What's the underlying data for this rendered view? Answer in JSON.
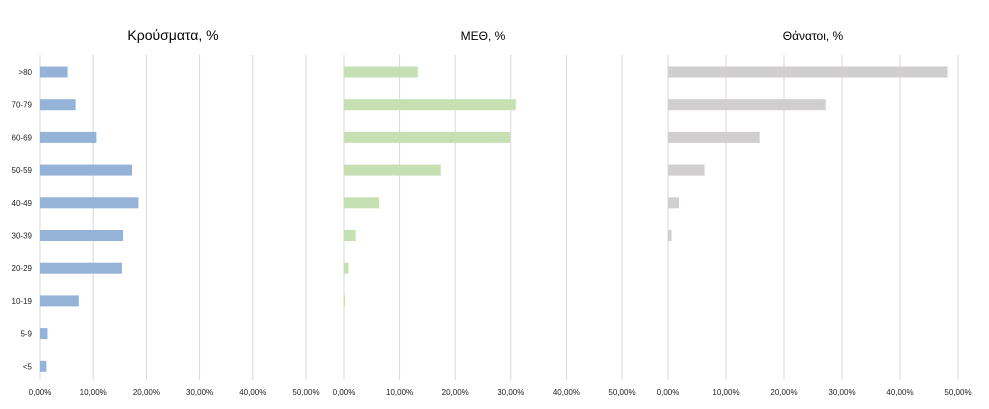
{
  "chart_data": {
    "type": "bar",
    "orientation": "horizontal",
    "categories": [
      ">80",
      "70-79",
      "60-69",
      "50-59",
      "40-49",
      "30-39",
      "20-29",
      "10-19",
      "5-9",
      "<5"
    ],
    "xlim": [
      0,
      50
    ],
    "grid": true,
    "legend": "none",
    "panels": [
      {
        "title": "Κρούσματα, %",
        "color": "#95b3d7",
        "ticks": [
          "0,00%",
          "10,00%",
          "20,00%",
          "30,00%",
          "40,00%",
          "50,00%"
        ],
        "values": [
          5.2,
          6.7,
          10.6,
          17.3,
          18.5,
          15.6,
          15.4,
          7.3,
          1.4,
          1.2
        ]
      },
      {
        "title": "ΜΕΘ, %",
        "color": "#c6e0b4",
        "ticks": [
          "0,00%",
          "10,00%",
          "20,00%",
          "30,00%",
          "40,00%",
          "50,00%"
        ],
        "values": [
          13.3,
          30.9,
          29.9,
          17.4,
          6.3,
          2.1,
          0.8,
          0.2,
          0,
          0
        ]
      },
      {
        "title": "Θάνατοι, %",
        "color": "#d0cece",
        "ticks": [
          "0,00%",
          "10,00%",
          "20,00%",
          "30,00%",
          "40,00%",
          "50,00%"
        ],
        "values": [
          48.2,
          27.2,
          15.8,
          6.3,
          1.9,
          0.6,
          0,
          0,
          0,
          0
        ]
      }
    ]
  }
}
